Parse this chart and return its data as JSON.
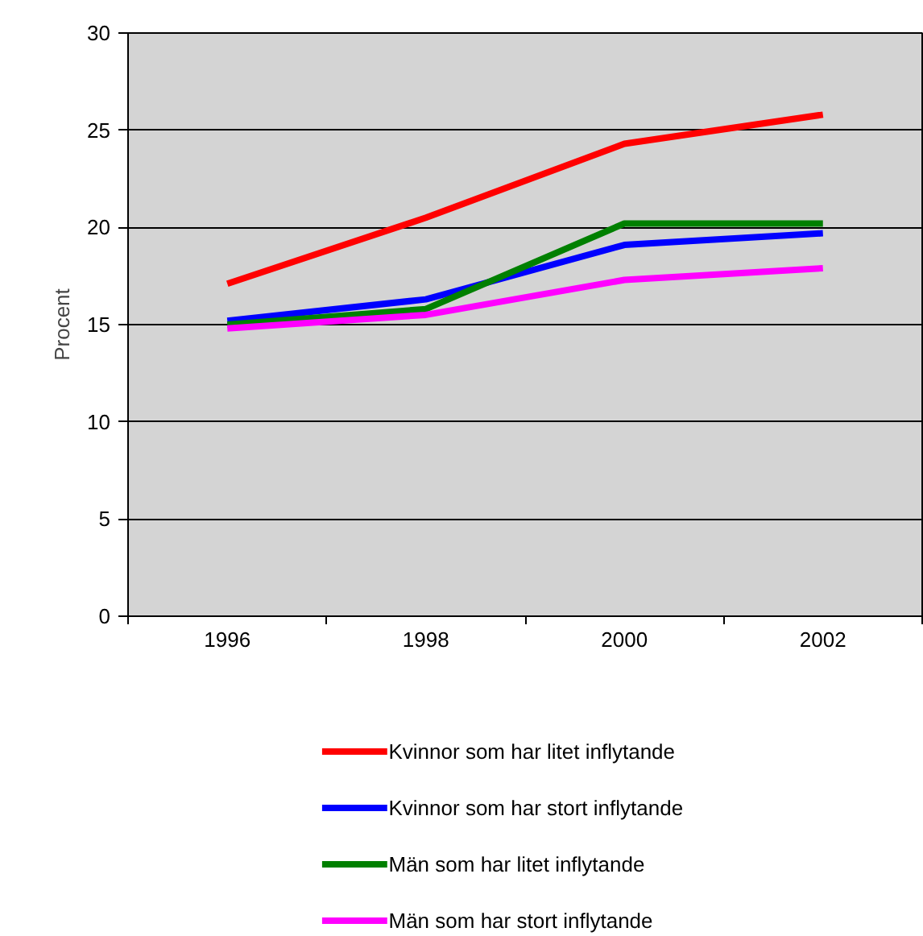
{
  "chart_data": {
    "type": "line",
    "ylabel": "Procent",
    "categories": [
      "1996",
      "1998",
      "2000",
      "2002"
    ],
    "ylim": [
      0,
      30
    ],
    "yticks": [
      0,
      5,
      10,
      15,
      20,
      25,
      30
    ],
    "grid": "y",
    "legend": "bottom",
    "marker": "none",
    "line_style": "solid",
    "series": [
      {
        "name": "Kvinnor som har litet inflytande",
        "color": "#ff0000",
        "values": [
          17.1,
          20.5,
          24.3,
          25.8
        ]
      },
      {
        "name": "Kvinnor som har stort inflytande",
        "color": "#0000ff",
        "values": [
          15.2,
          16.3,
          19.1,
          19.7
        ]
      },
      {
        "name": "Män som har litet inflytande",
        "color": "#008000",
        "values": [
          15.0,
          15.8,
          20.2,
          20.2
        ]
      },
      {
        "name": "Män som har stort inflytande",
        "color": "#ff00ff",
        "values": [
          14.8,
          15.5,
          17.3,
          17.9
        ]
      }
    ]
  }
}
